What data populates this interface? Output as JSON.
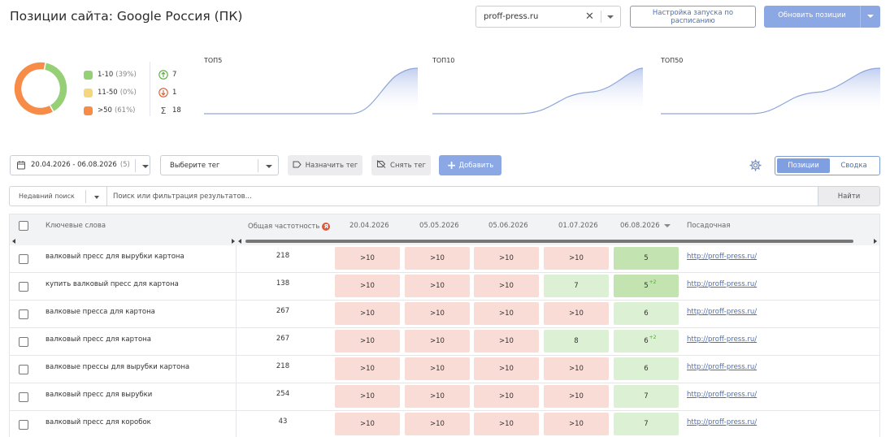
{
  "header": {
    "title": "Позиции сайта: Google Россия (ПК)",
    "domain": "proff-press.ru",
    "schedule_btn": "Настройка запуска по расписанию",
    "update_btn": "Обновить позиции"
  },
  "summary": {
    "distribution": [
      {
        "label": "1-10",
        "pct": "(39%)",
        "value": 39,
        "color": "#95cf76"
      },
      {
        "label": "11-50",
        "pct": "(0%)",
        "value": 0,
        "color": "#f3d77a"
      },
      {
        "label": ">50",
        "pct": "(61%)",
        "value": 61,
        "color": "#f78c49"
      }
    ],
    "stats": [
      {
        "icon": "arrow-up-circle-icon",
        "value": "7",
        "color": "#5aa83a"
      },
      {
        "icon": "arrow-down-circle-icon",
        "value": "1",
        "color": "#d9572a"
      },
      {
        "icon": "sum-icon",
        "value": "18",
        "color": "#666666"
      }
    ],
    "mini_charts": [
      {
        "label": "ТОП5"
      },
      {
        "label": "ТОП10"
      },
      {
        "label": "ТОП50"
      }
    ]
  },
  "toolbar": {
    "date_range": "20.04.2026 - 06.08.2026",
    "date_count": "(5)",
    "tag_select": "Выберите тег",
    "assign_tag": "Назначить тег",
    "remove_tag": "Снять тег",
    "add": "Добавить",
    "view_positions": "Позиции",
    "view_summary": "Сводка"
  },
  "search": {
    "recent": "Недавний поиск",
    "placeholder": "Поиск или фильтрация результатов...",
    "find": "Найти"
  },
  "table": {
    "headers": {
      "keywords": "Ключевые слова",
      "frequency": "Общая частотность",
      "landing": "Посадочная"
    },
    "dates": [
      "20.04.2026",
      "05.05.2026",
      "05.06.2026",
      "01.07.2026",
      "06.08.2026"
    ],
    "rows": [
      {
        "keyword": "валковый пресс для вырубки картона",
        "freq": "218",
        "positions": [
          ">10",
          ">10",
          ">10",
          ">10",
          "5"
        ],
        "colors": [
          "red",
          "red",
          "red",
          "red",
          "dgreen"
        ],
        "delta": "",
        "url": "http://proff-press.ru/"
      },
      {
        "keyword": "купить валковый пресс для картона",
        "freq": "138",
        "positions": [
          ">10",
          ">10",
          ">10",
          "7",
          "5"
        ],
        "colors": [
          "red",
          "red",
          "red",
          "green",
          "dgreen"
        ],
        "delta": "+2",
        "url": "http://proff-press.ru/"
      },
      {
        "keyword": "валковые пресса для картона",
        "freq": "267",
        "positions": [
          ">10",
          ">10",
          ">10",
          ">10",
          "6"
        ],
        "colors": [
          "red",
          "red",
          "red",
          "red",
          "green"
        ],
        "delta": "",
        "url": "http://proff-press.ru/"
      },
      {
        "keyword": "валковый пресс для картона",
        "freq": "267",
        "positions": [
          ">10",
          ">10",
          ">10",
          "8",
          "6"
        ],
        "colors": [
          "red",
          "red",
          "red",
          "green",
          "green"
        ],
        "delta": "+2",
        "url": "http://proff-press.ru/"
      },
      {
        "keyword": "валковые прессы для вырубки картона",
        "freq": "218",
        "positions": [
          ">10",
          ">10",
          ">10",
          ">10",
          "6"
        ],
        "colors": [
          "red",
          "red",
          "red",
          "red",
          "green"
        ],
        "delta": "",
        "url": "http://proff-press.ru/"
      },
      {
        "keyword": "валковый пресс для вырубки",
        "freq": "254",
        "positions": [
          ">10",
          ">10",
          ">10",
          ">10",
          "7"
        ],
        "colors": [
          "red",
          "red",
          "red",
          "red",
          "green"
        ],
        "delta": "",
        "url": "http://proff-press.ru/"
      },
      {
        "keyword": "валковый пресс для коробок",
        "freq": "43",
        "positions": [
          ">10",
          ">10",
          ">10",
          ">10",
          "7"
        ],
        "colors": [
          "red",
          "red",
          "red",
          "red",
          "green"
        ],
        "delta": "",
        "url": "http://proff-press.ru/"
      }
    ]
  }
}
